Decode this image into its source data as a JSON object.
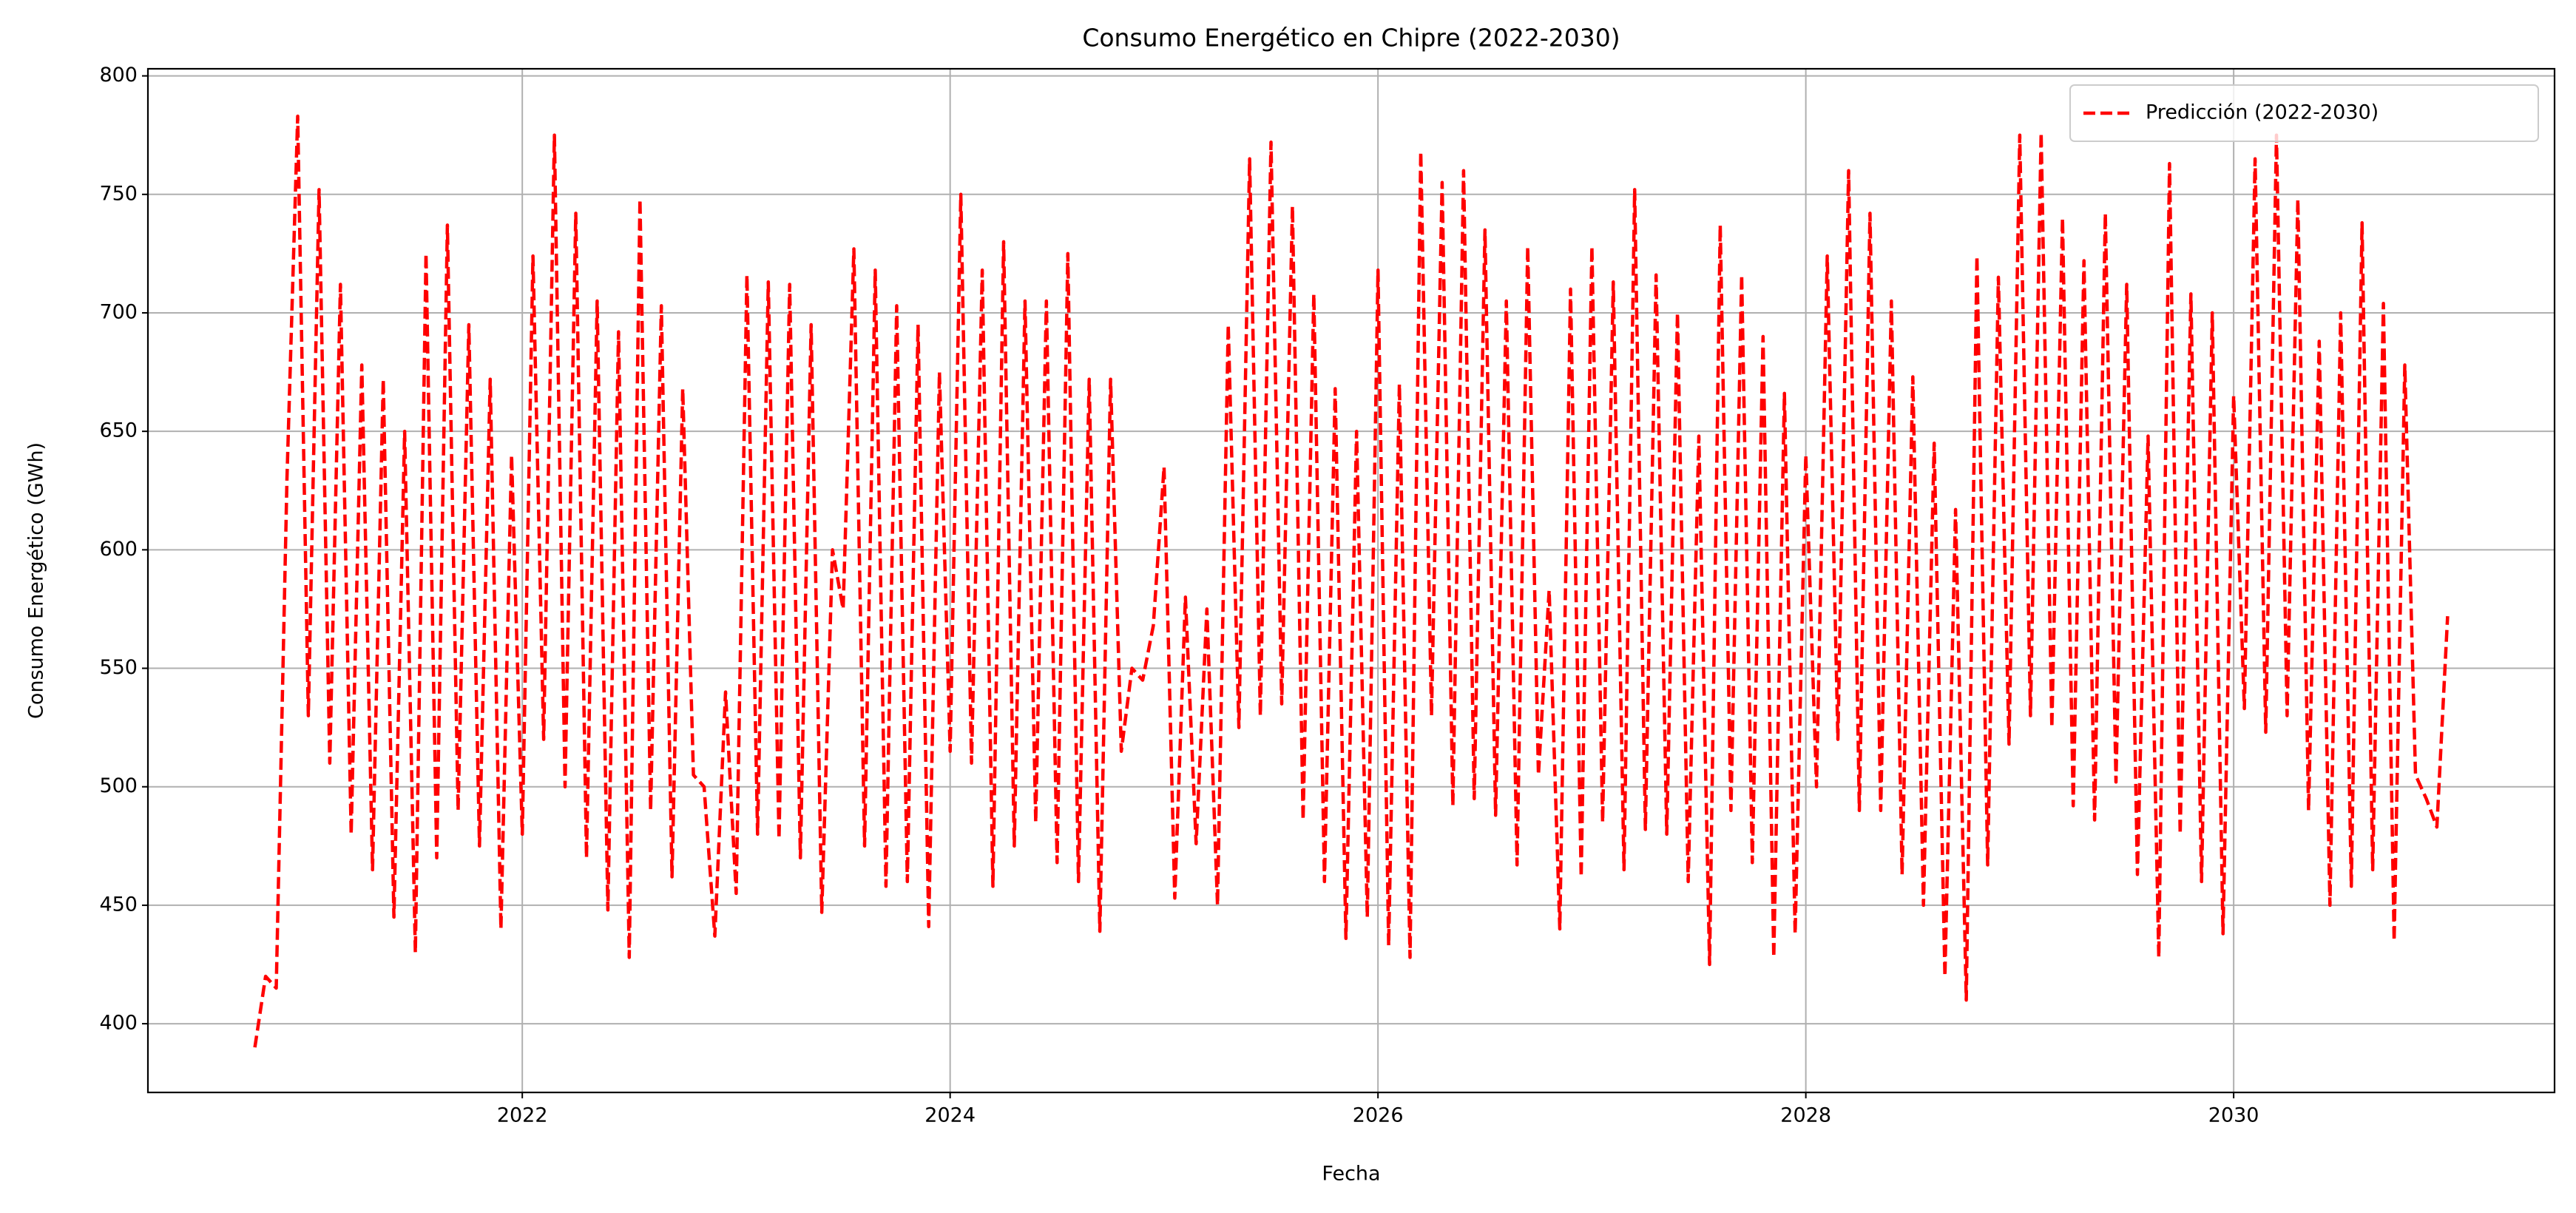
{
  "chart_data": {
    "type": "line",
    "title": "Consumo Energético en Chipre (2022-2030)",
    "x_label": "Fecha",
    "y_label": "Consumo Energético (GWh)",
    "x": [
      2020.75,
      2020.8,
      2020.85,
      2020.9,
      2020.95,
      2021,
      2021.05,
      2021.1,
      2021.15,
      2021.2,
      2021.25,
      2021.3,
      2021.35,
      2021.4,
      2021.45,
      2021.5,
      2021.55,
      2021.6,
      2021.65,
      2021.7,
      2021.75,
      2021.8,
      2021.85,
      2021.9,
      2021.95,
      2022,
      2022.05,
      2022.1,
      2022.15,
      2022.2,
      2022.25,
      2022.3,
      2022.35,
      2022.4,
      2022.45,
      2022.5,
      2022.55,
      2022.6,
      2022.65,
      2022.7,
      2022.75,
      2022.8,
      2022.85,
      2022.9,
      2022.95,
      2023,
      2023.05,
      2023.1,
      2023.15,
      2023.2,
      2023.25,
      2023.3,
      2023.35,
      2023.4,
      2023.45,
      2023.5,
      2023.55,
      2023.6,
      2023.65,
      2023.7,
      2023.75,
      2023.8,
      2023.85,
      2023.9,
      2023.95,
      2024,
      2024.05,
      2024.1,
      2024.15,
      2024.2,
      2024.25,
      2024.3,
      2024.35,
      2024.4,
      2024.45,
      2024.5,
      2024.55,
      2024.6,
      2024.65,
      2024.7,
      2024.75,
      2024.8,
      2024.85,
      2024.9,
      2024.95,
      2025,
      2025.05,
      2025.1,
      2025.15,
      2025.2,
      2025.25,
      2025.3,
      2025.35,
      2025.4,
      2025.45,
      2025.5,
      2025.55,
      2025.6,
      2025.65,
      2025.7,
      2025.75,
      2025.8,
      2025.85,
      2025.9,
      2025.95,
      2026,
      2026.05,
      2026.1,
      2026.15,
      2026.2,
      2026.25,
      2026.3,
      2026.35,
      2026.4,
      2026.45,
      2026.5,
      2026.55,
      2026.6,
      2026.65,
      2026.7,
      2026.75,
      2026.8,
      2026.85,
      2026.9,
      2026.95,
      2027,
      2027.05,
      2027.1,
      2027.15,
      2027.2,
      2027.25,
      2027.3,
      2027.35,
      2027.4,
      2027.45,
      2027.5,
      2027.55,
      2027.6,
      2027.65,
      2027.7,
      2027.75,
      2027.8,
      2027.85,
      2027.9,
      2027.95,
      2028,
      2028.05,
      2028.1,
      2028.15,
      2028.2,
      2028.25,
      2028.3,
      2028.35,
      2028.4,
      2028.45,
      2028.5,
      2028.55,
      2028.6,
      2028.65,
      2028.7,
      2028.75,
      2028.8,
      2028.85,
      2028.9,
      2028.95,
      2029,
      2029.05,
      2029.1,
      2029.15,
      2029.2,
      2029.25,
      2029.3,
      2029.35,
      2029.4,
      2029.45,
      2029.5,
      2029.55,
      2029.6,
      2029.65,
      2029.7,
      2029.75,
      2029.8,
      2029.85,
      2029.9,
      2029.95,
      2030,
      2030.05,
      2030.1,
      2030.15,
      2030.2,
      2030.25,
      2030.3,
      2030.35,
      2030.4,
      2030.45,
      2030.5,
      2030.55,
      2030.6,
      2030.65,
      2030.7,
      2030.75,
      2030.8,
      2030.85,
      2030.9,
      2030.95,
      2031
    ],
    "series": [
      {
        "name": "Predicción (2022-2030)",
        "color": "#ff0000",
        "dashed": true,
        "values": [
          390,
          420,
          415,
          630,
          783,
          530,
          752,
          510,
          712,
          480,
          678,
          465,
          672,
          445,
          650,
          430,
          725,
          470,
          737,
          490,
          695,
          475,
          672,
          440,
          640,
          480,
          724,
          520,
          775,
          500,
          742,
          470,
          705,
          448,
          692,
          428,
          748,
          490,
          703,
          462,
          668,
          505,
          500,
          437,
          540,
          455,
          716,
          480,
          713,
          478,
          712,
          470,
          695,
          447,
          600,
          575,
          727,
          475,
          718,
          458,
          703,
          460,
          695,
          441,
          675,
          515,
          750,
          510,
          718,
          458,
          730,
          475,
          705,
          485,
          705,
          468,
          725,
          460,
          672,
          439,
          672,
          515,
          550,
          545,
          568,
          635,
          453,
          580,
          476,
          575,
          450,
          695,
          525,
          765,
          530,
          772,
          535,
          745,
          486,
          708,
          460,
          668,
          436,
          650,
          445,
          718,
          433,
          670,
          428,
          768,
          530,
          755,
          492,
          760,
          495,
          735,
          488,
          705,
          467,
          728,
          505,
          583,
          440,
          710,
          462,
          728,
          485,
          713,
          465,
          752,
          482,
          716,
          480,
          700,
          460,
          648,
          425,
          737,
          490,
          716,
          468,
          690,
          428,
          666,
          438,
          640,
          500,
          724,
          520,
          760,
          490,
          742,
          490,
          705,
          463,
          673,
          450,
          645,
          420,
          617,
          410,
          724,
          467,
          715,
          518,
          775,
          530,
          776,
          525,
          740,
          492,
          722,
          486,
          742,
          502,
          712,
          463,
          648,
          428,
          763,
          480,
          708,
          460,
          700,
          438,
          665,
          533,
          765,
          523,
          775,
          530,
          748,
          490,
          688,
          450,
          700,
          458,
          738,
          465,
          704,
          435,
          678,
          505,
          495,
          483,
          572
        ]
      }
    ],
    "xlim": [
      2020.25,
      2031.5
    ],
    "ylim": [
      371,
      803
    ],
    "xticks": [
      2022,
      2024,
      2026,
      2028,
      2030
    ],
    "yticks": [
      400,
      450,
      500,
      550,
      600,
      650,
      700,
      750,
      800
    ],
    "grid": true,
    "legend": "upper right"
  }
}
